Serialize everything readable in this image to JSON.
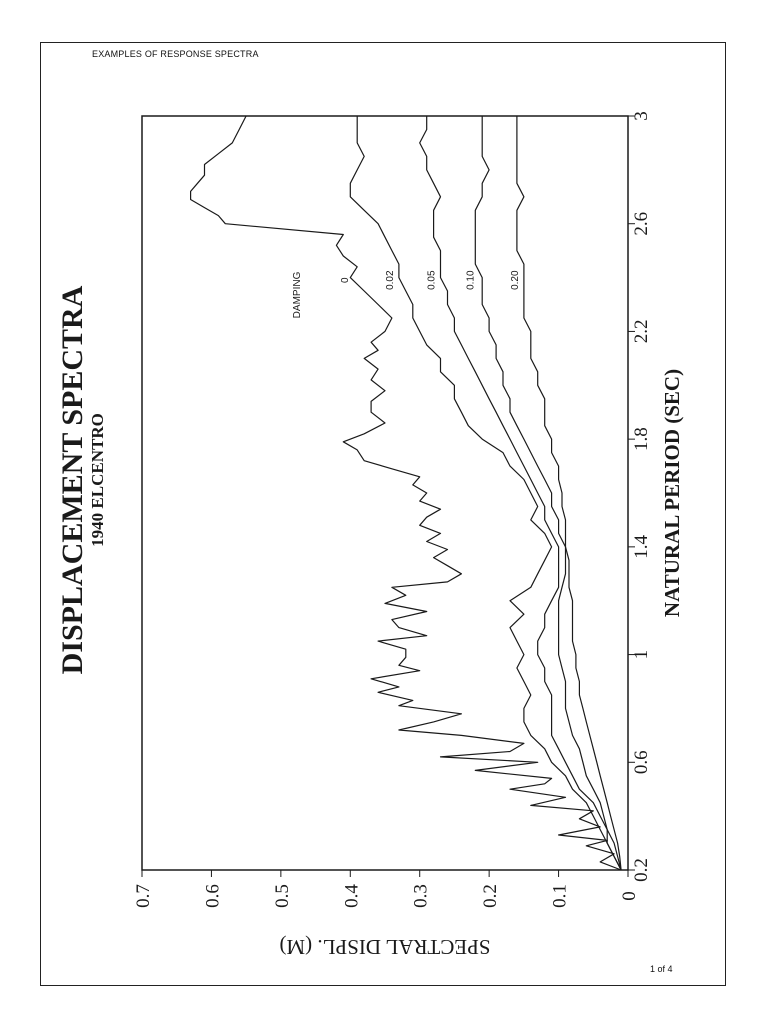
{
  "header": {
    "title": "EXAMPLES OF RESPONSE SPECTRA"
  },
  "footer": {
    "page": "1 of 4"
  },
  "colors": {
    "ink": "#1a1a1a",
    "paper": "#ffffff"
  },
  "chart_data": {
    "type": "line",
    "orientation": "rotated-90-ccw",
    "title": "DISPLACEMENT SPECTRA",
    "subtitle": "1940 ELCENTRO",
    "xlabel": "NATURAL PERIOD (SEC)",
    "ylabel": "SPECTRAL DISPL. (M)",
    "xlim": [
      0.2,
      3.0
    ],
    "ylim": [
      0,
      0.7
    ],
    "xticks": [
      "0.2",
      "0.6",
      "1",
      "1.4",
      "1.8",
      "2.2",
      "2.6",
      "3"
    ],
    "xtick_values": [
      0.2,
      0.6,
      1.0,
      1.4,
      1.8,
      2.2,
      2.6,
      3.0
    ],
    "yticks": [
      "0",
      "0.1",
      "0.2",
      "0.3",
      "0.4",
      "0.5",
      "0.6",
      "0.7"
    ],
    "ytick_values": [
      0,
      0.1,
      0.2,
      0.3,
      0.4,
      0.5,
      0.6,
      0.7
    ],
    "grid": false,
    "legend_title": "DAMPING",
    "series": [
      {
        "name": "0",
        "x": [
          0.2,
          0.23,
          0.26,
          0.29,
          0.31,
          0.33,
          0.36,
          0.39,
          0.42,
          0.44,
          0.47,
          0.5,
          0.52,
          0.54,
          0.57,
          0.6,
          0.62,
          0.64,
          0.67,
          0.7,
          0.72,
          0.75,
          0.78,
          0.81,
          0.83,
          0.86,
          0.88,
          0.91,
          0.94,
          0.96,
          0.99,
          1.02,
          1.05,
          1.07,
          1.1,
          1.13,
          1.16,
          1.19,
          1.22,
          1.25,
          1.27,
          1.3,
          1.33,
          1.36,
          1.39,
          1.42,
          1.45,
          1.48,
          1.51,
          1.54,
          1.57,
          1.6,
          1.63,
          1.66,
          1.69,
          1.72,
          1.76,
          1.79,
          1.82,
          1.86,
          1.9,
          1.94,
          1.98,
          2.02,
          2.06,
          2.1,
          2.13,
          2.16,
          2.2,
          2.25,
          2.3,
          2.35,
          2.4,
          2.44,
          2.48,
          2.52,
          2.56,
          2.6,
          2.63,
          2.66,
          2.69,
          2.72,
          2.75,
          2.78,
          2.82,
          2.86,
          2.9,
          2.95,
          3.0
        ],
        "y": [
          0.01,
          0.04,
          0.02,
          0.06,
          0.03,
          0.1,
          0.04,
          0.07,
          0.05,
          0.14,
          0.09,
          0.17,
          0.12,
          0.11,
          0.22,
          0.13,
          0.27,
          0.17,
          0.15,
          0.24,
          0.33,
          0.28,
          0.24,
          0.33,
          0.31,
          0.36,
          0.33,
          0.37,
          0.3,
          0.33,
          0.32,
          0.32,
          0.36,
          0.29,
          0.33,
          0.34,
          0.29,
          0.35,
          0.32,
          0.34,
          0.26,
          0.24,
          0.26,
          0.28,
          0.26,
          0.29,
          0.27,
          0.3,
          0.29,
          0.27,
          0.3,
          0.29,
          0.31,
          0.3,
          0.34,
          0.38,
          0.39,
          0.41,
          0.38,
          0.35,
          0.37,
          0.37,
          0.35,
          0.37,
          0.36,
          0.38,
          0.36,
          0.37,
          0.35,
          0.34,
          0.36,
          0.38,
          0.4,
          0.39,
          0.41,
          0.42,
          0.41,
          0.58,
          0.59,
          0.61,
          0.63,
          0.63,
          0.62,
          0.61,
          0.61,
          0.59,
          0.57,
          0.56,
          0.55
        ]
      },
      {
        "name": "0.02",
        "x": [
          0.2,
          0.25,
          0.3,
          0.35,
          0.4,
          0.45,
          0.5,
          0.55,
          0.6,
          0.65,
          0.7,
          0.75,
          0.8,
          0.85,
          0.9,
          0.95,
          1.0,
          1.05,
          1.1,
          1.15,
          1.2,
          1.25,
          1.3,
          1.35,
          1.4,
          1.45,
          1.5,
          1.55,
          1.6,
          1.65,
          1.7,
          1.75,
          1.8,
          1.85,
          1.9,
          1.95,
          2.0,
          2.05,
          2.1,
          2.15,
          2.2,
          2.25,
          2.3,
          2.35,
          2.4,
          2.45,
          2.5,
          2.55,
          2.6,
          2.65,
          2.7,
          2.75,
          2.8,
          2.85,
          2.9,
          2.95,
          3.0
        ],
        "y": [
          0.01,
          0.02,
          0.03,
          0.04,
          0.05,
          0.06,
          0.08,
          0.09,
          0.11,
          0.12,
          0.14,
          0.15,
          0.15,
          0.14,
          0.15,
          0.16,
          0.15,
          0.16,
          0.17,
          0.15,
          0.17,
          0.14,
          0.13,
          0.12,
          0.11,
          0.12,
          0.14,
          0.13,
          0.14,
          0.15,
          0.17,
          0.18,
          0.21,
          0.23,
          0.24,
          0.25,
          0.25,
          0.27,
          0.27,
          0.29,
          0.3,
          0.31,
          0.31,
          0.32,
          0.33,
          0.33,
          0.34,
          0.35,
          0.36,
          0.38,
          0.4,
          0.4,
          0.39,
          0.38,
          0.39,
          0.39,
          0.39
        ]
      },
      {
        "name": "0.05",
        "x": [
          0.2,
          0.25,
          0.3,
          0.35,
          0.4,
          0.45,
          0.5,
          0.55,
          0.6,
          0.65,
          0.7,
          0.75,
          0.8,
          0.85,
          0.9,
          0.95,
          1.0,
          1.05,
          1.1,
          1.15,
          1.2,
          1.25,
          1.3,
          1.35,
          1.4,
          1.45,
          1.5,
          1.55,
          1.6,
          1.65,
          1.7,
          1.75,
          1.8,
          1.85,
          1.9,
          1.95,
          2.0,
          2.05,
          2.1,
          2.15,
          2.2,
          2.25,
          2.3,
          2.35,
          2.4,
          2.45,
          2.5,
          2.55,
          2.6,
          2.65,
          2.7,
          2.75,
          2.8,
          2.85,
          2.9,
          2.95,
          3.0
        ],
        "y": [
          0.01,
          0.02,
          0.03,
          0.03,
          0.04,
          0.05,
          0.07,
          0.08,
          0.09,
          0.1,
          0.11,
          0.11,
          0.11,
          0.11,
          0.12,
          0.12,
          0.13,
          0.13,
          0.12,
          0.12,
          0.11,
          0.1,
          0.1,
          0.1,
          0.1,
          0.11,
          0.12,
          0.12,
          0.13,
          0.14,
          0.15,
          0.16,
          0.17,
          0.18,
          0.19,
          0.2,
          0.21,
          0.22,
          0.23,
          0.24,
          0.25,
          0.25,
          0.26,
          0.26,
          0.27,
          0.27,
          0.27,
          0.28,
          0.28,
          0.28,
          0.27,
          0.28,
          0.29,
          0.29,
          0.3,
          0.29,
          0.29
        ]
      },
      {
        "name": "0.10",
        "x": [
          0.2,
          0.25,
          0.3,
          0.35,
          0.4,
          0.45,
          0.5,
          0.55,
          0.6,
          0.65,
          0.7,
          0.75,
          0.8,
          0.85,
          0.9,
          0.95,
          1.0,
          1.05,
          1.1,
          1.15,
          1.2,
          1.25,
          1.3,
          1.35,
          1.4,
          1.45,
          1.5,
          1.55,
          1.6,
          1.65,
          1.7,
          1.75,
          1.8,
          1.85,
          1.9,
          1.95,
          2.0,
          2.05,
          2.1,
          2.15,
          2.2,
          2.25,
          2.3,
          2.35,
          2.4,
          2.45,
          2.5,
          2.55,
          2.6,
          2.65,
          2.7,
          2.75,
          2.8,
          2.85,
          2.9,
          2.95,
          3.0
        ],
        "y": [
          0.01,
          0.015,
          0.02,
          0.03,
          0.035,
          0.04,
          0.05,
          0.06,
          0.065,
          0.07,
          0.08,
          0.085,
          0.09,
          0.09,
          0.09,
          0.095,
          0.1,
          0.1,
          0.1,
          0.1,
          0.1,
          0.095,
          0.09,
          0.09,
          0.09,
          0.1,
          0.1,
          0.11,
          0.11,
          0.12,
          0.13,
          0.14,
          0.15,
          0.16,
          0.17,
          0.17,
          0.18,
          0.18,
          0.19,
          0.19,
          0.2,
          0.2,
          0.21,
          0.21,
          0.21,
          0.22,
          0.22,
          0.22,
          0.22,
          0.22,
          0.21,
          0.21,
          0.2,
          0.21,
          0.21,
          0.21,
          0.21
        ]
      },
      {
        "name": "0.20",
        "x": [
          0.2,
          0.25,
          0.3,
          0.35,
          0.4,
          0.45,
          0.5,
          0.55,
          0.6,
          0.65,
          0.7,
          0.75,
          0.8,
          0.85,
          0.9,
          0.95,
          1.0,
          1.05,
          1.1,
          1.15,
          1.2,
          1.25,
          1.3,
          1.35,
          1.4,
          1.45,
          1.5,
          1.55,
          1.6,
          1.65,
          1.7,
          1.75,
          1.8,
          1.85,
          1.9,
          1.95,
          2.0,
          2.05,
          2.1,
          2.15,
          2.2,
          2.25,
          2.3,
          2.35,
          2.4,
          2.45,
          2.5,
          2.55,
          2.6,
          2.65,
          2.7,
          2.75,
          2.8,
          2.85,
          2.9,
          2.95,
          3.0
        ],
        "y": [
          0.01,
          0.012,
          0.015,
          0.02,
          0.025,
          0.03,
          0.035,
          0.04,
          0.045,
          0.05,
          0.055,
          0.06,
          0.065,
          0.07,
          0.07,
          0.075,
          0.075,
          0.08,
          0.08,
          0.08,
          0.08,
          0.085,
          0.085,
          0.085,
          0.09,
          0.09,
          0.09,
          0.095,
          0.095,
          0.1,
          0.1,
          0.11,
          0.11,
          0.12,
          0.12,
          0.12,
          0.13,
          0.13,
          0.14,
          0.14,
          0.14,
          0.15,
          0.15,
          0.15,
          0.15,
          0.15,
          0.16,
          0.16,
          0.16,
          0.16,
          0.15,
          0.16,
          0.16,
          0.16,
          0.16,
          0.16,
          0.16
        ]
      }
    ]
  }
}
